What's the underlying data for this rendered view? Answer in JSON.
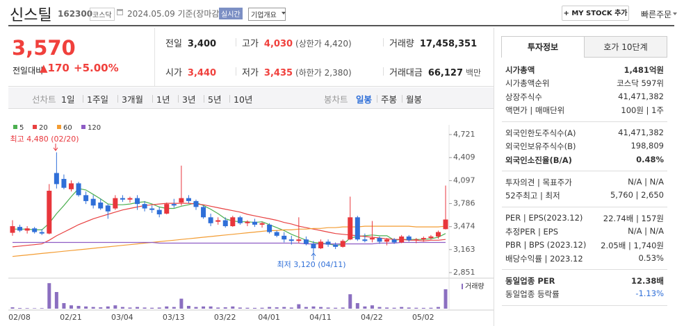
{
  "header": {
    "name": "신스틸",
    "code": "162300",
    "market": "코스닥",
    "date": "2024.05.09 기준(장마감)",
    "realtime": "실시간",
    "overview": "기업개요",
    "mystock": "+ MY STOCK 추가",
    "quick_order": "빠른주문"
  },
  "price": {
    "current": "3,570",
    "change_label": "전일대비",
    "change": "▲170",
    "change_rate": "+5.00%",
    "color": "#f0403c"
  },
  "summary": [
    [
      {
        "label": "전일",
        "value": "3,400"
      },
      {
        "label": "고가",
        "value": "4,030",
        "note": "(상한가 4,420)",
        "color": "#f0403c"
      },
      {
        "label": "거래량",
        "value": "17,458,351"
      }
    ],
    [
      {
        "label": "시가",
        "value": "3,440",
        "color": "#f0403c"
      },
      {
        "label": "저가",
        "value": "3,435",
        "note": "(하한가 2,380)",
        "color": "#f0403c"
      },
      {
        "label": "거래대금",
        "value": "66,127",
        "note": "백만"
      }
    ]
  ],
  "tabs": {
    "line_label": "선차트",
    "line": [
      "1일",
      "1주일",
      "3개월",
      "1년",
      "3년",
      "5년",
      "10년"
    ],
    "candle_label": "봉차트",
    "candle": [
      "일봉",
      "주봉",
      "월봉"
    ]
  },
  "chart": {
    "type": "candlestick",
    "up_color": "#e8363c",
    "down_color": "#2f6fd8",
    "categories": [
      "02/08",
      null,
      null,
      null,
      null,
      null,
      null,
      "02/21",
      null,
      null,
      null,
      null,
      null,
      null,
      "03/04",
      null,
      null,
      null,
      null,
      null,
      null,
      "03/13",
      null,
      null,
      null,
      null,
      null,
      null,
      "03/22",
      null,
      null,
      null,
      null,
      null,
      "04/01",
      null,
      null,
      null,
      null,
      null,
      null,
      "04/11",
      null,
      null,
      null,
      null,
      null,
      null,
      "04/22",
      null,
      null,
      null,
      null,
      null,
      null,
      "05/02",
      null,
      null,
      null,
      null
    ],
    "candles": [
      [
        3390,
        3560,
        3350,
        3480
      ],
      [
        3470,
        3500,
        3400,
        3420
      ],
      [
        3420,
        3480,
        3380,
        3450
      ],
      [
        3450,
        3470,
        3380,
        3400
      ],
      [
        3400,
        3440,
        3360,
        3380
      ],
      [
        3380,
        4050,
        3370,
        3960
      ],
      [
        4200,
        4480,
        3990,
        4050
      ],
      [
        4120,
        4180,
        3980,
        4000
      ],
      [
        3980,
        4100,
        3950,
        4060
      ],
      [
        4060,
        4080,
        3880,
        3900
      ],
      [
        3900,
        3950,
        3780,
        3820
      ],
      [
        3850,
        3900,
        3720,
        3760
      ],
      [
        3800,
        3850,
        3700,
        3720
      ],
      [
        3760,
        3780,
        3580,
        3680
      ],
      [
        3720,
        3900,
        3700,
        3860
      ],
      [
        3860,
        3900,
        3810,
        3840
      ],
      [
        3840,
        3880,
        3800,
        3860
      ],
      [
        3860,
        3900,
        3700,
        3780
      ],
      [
        3780,
        3820,
        3680,
        3720
      ],
      [
        3720,
        3760,
        3660,
        3700
      ],
      [
        3700,
        3740,
        3600,
        3640
      ],
      [
        3650,
        3800,
        3640,
        3780
      ],
      [
        3780,
        3850,
        3730,
        3760
      ],
      [
        3800,
        4300,
        3760,
        3860
      ],
      [
        3860,
        3900,
        3790,
        3820
      ],
      [
        3820,
        3840,
        3700,
        3740
      ],
      [
        3740,
        3760,
        3580,
        3600
      ],
      [
        3600,
        3650,
        3480,
        3520
      ],
      [
        3540,
        3600,
        3500,
        3560
      ],
      [
        3560,
        3600,
        3460,
        3480
      ],
      [
        3480,
        3620,
        3470,
        3600
      ],
      [
        3600,
        3620,
        3500,
        3520
      ],
      [
        3520,
        3560,
        3480,
        3540
      ],
      [
        3540,
        3580,
        3470,
        3500
      ],
      [
        3500,
        3540,
        3460,
        3520
      ],
      [
        3500,
        3520,
        3380,
        3400
      ],
      [
        3400,
        3420,
        3330,
        3350
      ],
      [
        3350,
        3400,
        3260,
        3300
      ],
      [
        3300,
        3350,
        3230,
        3280
      ],
      [
        3280,
        3600,
        3250,
        3300
      ],
      [
        3300,
        3340,
        3220,
        3240
      ],
      [
        3240,
        3280,
        3120,
        3180
      ],
      [
        3180,
        3300,
        3170,
        3270
      ],
      [
        3270,
        3300,
        3200,
        3230
      ],
      [
        3230,
        3260,
        3170,
        3200
      ],
      [
        3200,
        3300,
        3190,
        3280
      ],
      [
        3300,
        3880,
        3290,
        3600
      ],
      [
        3600,
        3620,
        3280,
        3300
      ],
      [
        3300,
        3380,
        3260,
        3280
      ],
      [
        3300,
        3550,
        3260,
        3320
      ],
      [
        3320,
        3340,
        3240,
        3270
      ],
      [
        3270,
        3320,
        3220,
        3300
      ],
      [
        3300,
        3320,
        3240,
        3260
      ],
      [
        3260,
        3360,
        3250,
        3340
      ],
      [
        3340,
        3360,
        3270,
        3290
      ],
      [
        3290,
        3320,
        3250,
        3300
      ],
      [
        3300,
        3340,
        3270,
        3320
      ],
      [
        3320,
        3360,
        3300,
        3340
      ],
      [
        3340,
        3420,
        3310,
        3400
      ],
      [
        3440,
        4030,
        3435,
        3570
      ]
    ],
    "series": [
      {
        "name": "5",
        "color": "#4caf50",
        "values": [
          3440,
          3440,
          3440,
          3430,
          3430,
          3520,
          3650,
          3760,
          3880,
          3990,
          3970,
          3910,
          3850,
          3780,
          3770,
          3770,
          3780,
          3800,
          3810,
          3780,
          3740,
          3720,
          3720,
          3750,
          3770,
          3800,
          3760,
          3710,
          3650,
          3580,
          3550,
          3540,
          3540,
          3530,
          3540,
          3500,
          3460,
          3420,
          3370,
          3330,
          3290,
          3260,
          3250,
          3240,
          3220,
          3230,
          3320,
          3340,
          3350,
          3360,
          3350,
          3350,
          3290,
          3300,
          3300,
          3300,
          3300,
          3310,
          3330,
          3380
        ]
      },
      {
        "name": "20",
        "color": "#e84040",
        "values": [
          3200,
          3210,
          3220,
          3230,
          3240,
          3290,
          3350,
          3400,
          3450,
          3500,
          3540,
          3580,
          3610,
          3640,
          3670,
          3700,
          3720,
          3740,
          3760,
          3770,
          3780,
          3790,
          3790,
          3790,
          3790,
          3780,
          3770,
          3750,
          3730,
          3710,
          3690,
          3670,
          3640,
          3620,
          3600,
          3580,
          3560,
          3530,
          3510,
          3480,
          3460,
          3440,
          3420,
          3400,
          3380,
          3370,
          3360,
          3350,
          3340,
          3330,
          3320,
          3310,
          3300,
          3300,
          3290,
          3290,
          3280,
          3290,
          3290,
          3300
        ]
      },
      {
        "name": "60",
        "color": "#f39c32",
        "values": [
          3070,
          3080,
          3090,
          3100,
          3110,
          3120,
          3130,
          3140,
          3150,
          3160,
          3170,
          3180,
          3190,
          3200,
          3210,
          3220,
          3230,
          3240,
          3250,
          3260,
          3270,
          3280,
          3290,
          3300,
          3310,
          3320,
          3330,
          3340,
          3350,
          3360,
          3370,
          3380,
          3390,
          3400,
          3410,
          3420,
          3420,
          3430,
          3430,
          3440,
          3440,
          3450,
          3450,
          3460,
          3460,
          3470,
          3470,
          3470,
          3480,
          3480,
          3480,
          3480,
          3480,
          3480,
          3480,
          3470,
          3470,
          3470,
          3470,
          3480
        ]
      },
      {
        "name": "120",
        "color": "#8e5cc4",
        "values": [
          3260,
          3260,
          3260,
          3260,
          3260,
          3260,
          3260,
          3260,
          3260,
          3260,
          3260,
          3260,
          3260,
          3260,
          3260,
          3260,
          3260,
          3260,
          3260,
          3260,
          3250,
          3250,
          3250,
          3250,
          3250,
          3250,
          3250,
          3250,
          3250,
          3250,
          3250,
          3250,
          3250,
          3250,
          3250,
          3250,
          3250,
          3250,
          3250,
          3250,
          3240,
          3240,
          3240,
          3240,
          3240,
          3240,
          3240,
          3240,
          3240,
          3240,
          3250,
          3250,
          3250,
          3260,
          3260,
          3260,
          3260,
          3260,
          3260,
          3260
        ]
      }
    ],
    "ylim": [
      2851,
      4721
    ],
    "yticks": [
      {
        "value": 4721,
        "label": "4,721"
      },
      {
        "value": 4409,
        "label": "4,409"
      },
      {
        "value": 4097,
        "label": "4,097"
      },
      {
        "value": 3786,
        "label": "3,786"
      },
      {
        "value": 3474,
        "label": "3,474"
      },
      {
        "value": 3163,
        "label": "3,163"
      },
      {
        "value": 2851,
        "label": "2,851"
      }
    ],
    "volume_name": "거래량",
    "volume_color": "#8b6fc0",
    "volume_ylim": [
      0,
      25000000
    ],
    "volumes": [
      1200000,
      600000,
      500000,
      400000,
      500000,
      23000000,
      15000000,
      5000000,
      3000000,
      2500000,
      2000000,
      1500000,
      1200000,
      2000000,
      3000000,
      1500000,
      1000000,
      1500000,
      1000000,
      800000,
      1000000,
      2000000,
      1500000,
      9000000,
      2500000,
      1500000,
      2000000,
      2000000,
      1000000,
      1200000,
      2000000,
      1000000,
      800000,
      700000,
      800000,
      1500000,
      1200000,
      1500000,
      1000000,
      4000000,
      1500000,
      2000000,
      1500000,
      1000000,
      800000,
      1000000,
      13000000,
      5000000,
      2000000,
      3000000,
      1500000,
      1000000,
      800000,
      1500000,
      1000000,
      800000,
      700000,
      800000,
      1500000,
      17458351
    ],
    "annotations": [
      "최고 4,480 (02/20)",
      "최저 3,120 (04/11)"
    ]
  },
  "side": {
    "tabs": [
      "투자정보",
      "호가 10단계"
    ],
    "groups": [
      [
        {
          "label": "시가총액",
          "value": "1,481억원",
          "bold": true
        },
        {
          "label": "시가총액순위",
          "value": "코스닥 597위"
        },
        {
          "label": "상장주식수",
          "value": "41,471,382"
        },
        {
          "label": "액면가 | 매매단위",
          "value": "100원 | 1주"
        }
      ],
      [
        {
          "label": "외국인한도주식수(A)",
          "value": "41,471,382"
        },
        {
          "label": "외국인보유주식수(B)",
          "value": "198,809"
        },
        {
          "label": "외국인소진율(B/A)",
          "value": "0.48%",
          "bold": true
        }
      ],
      [
        {
          "label": "투자의견 | 목표주가",
          "value": "N/A | N/A"
        },
        {
          "label": "52주최고 | 최저",
          "value": "5,760 | 2,650"
        }
      ],
      [
        {
          "label": "PER | EPS(2023.12)",
          "value": "22.74배 | 157원"
        },
        {
          "label": "추정PER | EPS",
          "value": "N/A | N/A"
        },
        {
          "label": "PBR | BPS (2023.12)",
          "value": "2.05배 | 1,740원"
        },
        {
          "label": "배당수익률 | 2023.12",
          "value": "0.53%"
        }
      ],
      [
        {
          "label": "동일업종 PER",
          "value": "12.38배",
          "bold": true
        },
        {
          "label": "동일업종 등락률",
          "value": "-1.13%",
          "color": "#2f6fd8"
        }
      ]
    ]
  }
}
